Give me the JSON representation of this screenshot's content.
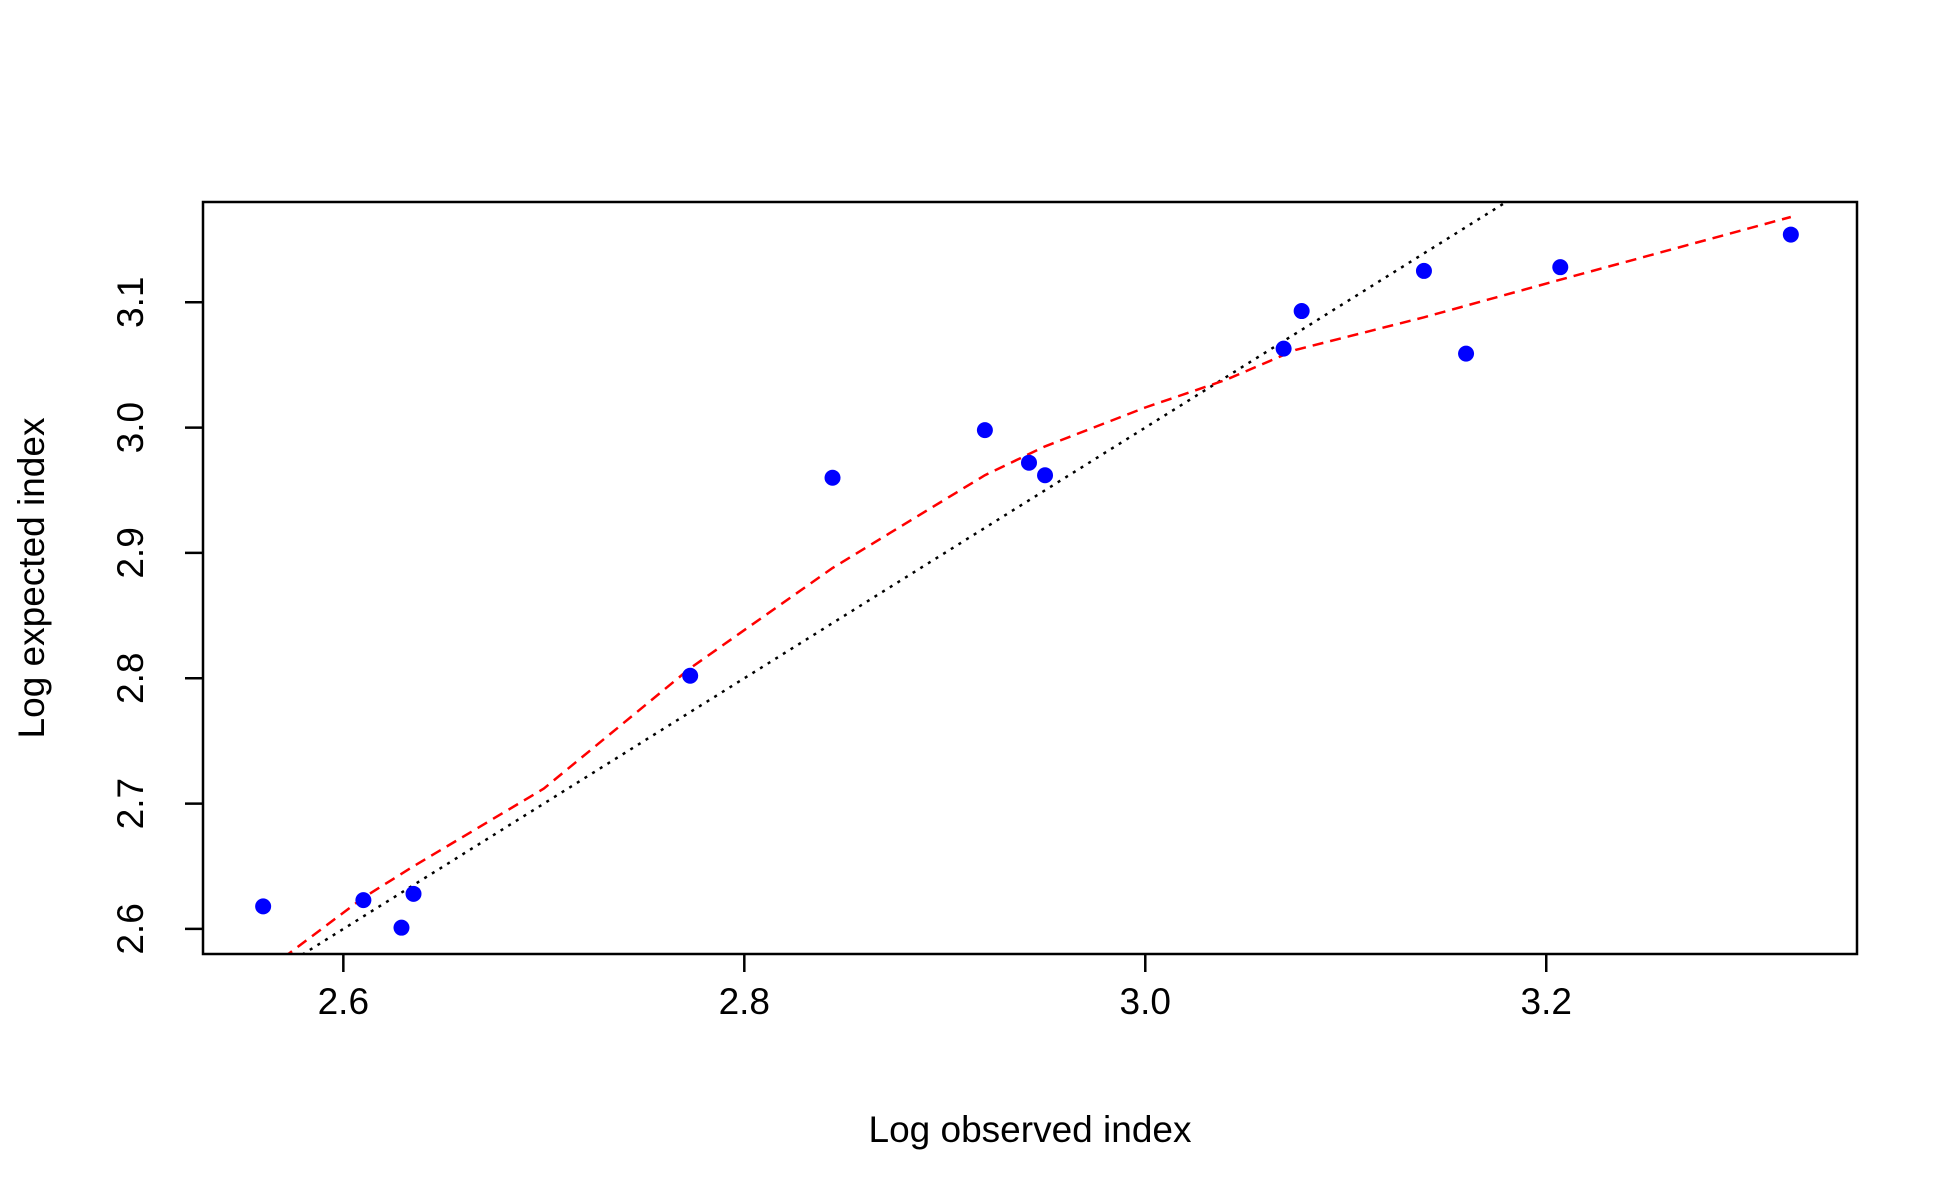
{
  "chart_data": {
    "type": "scatter",
    "title": "",
    "xlabel": "Log observed index",
    "ylabel": "Log expected index",
    "xlim": [
      2.53,
      3.355
    ],
    "ylim": [
      2.58,
      3.18
    ],
    "x_ticks": [
      2.6,
      2.8,
      3.0,
      3.2
    ],
    "x_tick_labels": [
      "2.6",
      "2.8",
      "3.0",
      "3.2"
    ],
    "y_ticks": [
      2.6,
      2.7,
      2.8,
      2.9,
      3.0,
      3.1
    ],
    "y_tick_labels": [
      "2.6",
      "2.7",
      "2.8",
      "2.9",
      "3.0",
      "3.1"
    ],
    "grid": false,
    "points": {
      "color": "#0000ff",
      "x": [
        2.56,
        2.61,
        2.629,
        2.635,
        2.773,
        2.844,
        2.92,
        2.942,
        2.95,
        3.069,
        3.078,
        3.139,
        3.16,
        3.207,
        3.322
      ],
      "y": [
        2.618,
        2.623,
        2.601,
        2.628,
        2.802,
        2.96,
        2.998,
        2.972,
        2.962,
        3.063,
        3.093,
        3.125,
        3.059,
        3.128,
        3.154
      ]
    },
    "reference_line": {
      "style": "dotted",
      "color": "#000000",
      "slope": 1,
      "intercept": 0
    },
    "smooth_line": {
      "style": "dashed",
      "color": "#ff0000",
      "x": [
        2.57,
        2.61,
        2.635,
        2.7,
        2.773,
        2.844,
        2.92,
        2.95,
        3.0,
        3.04,
        3.075,
        3.139,
        3.207,
        3.322
      ],
      "y": [
        2.577,
        2.625,
        2.65,
        2.712,
        2.808,
        2.888,
        2.962,
        2.985,
        3.016,
        3.038,
        3.062,
        3.088,
        3.118,
        3.168
      ]
    }
  }
}
